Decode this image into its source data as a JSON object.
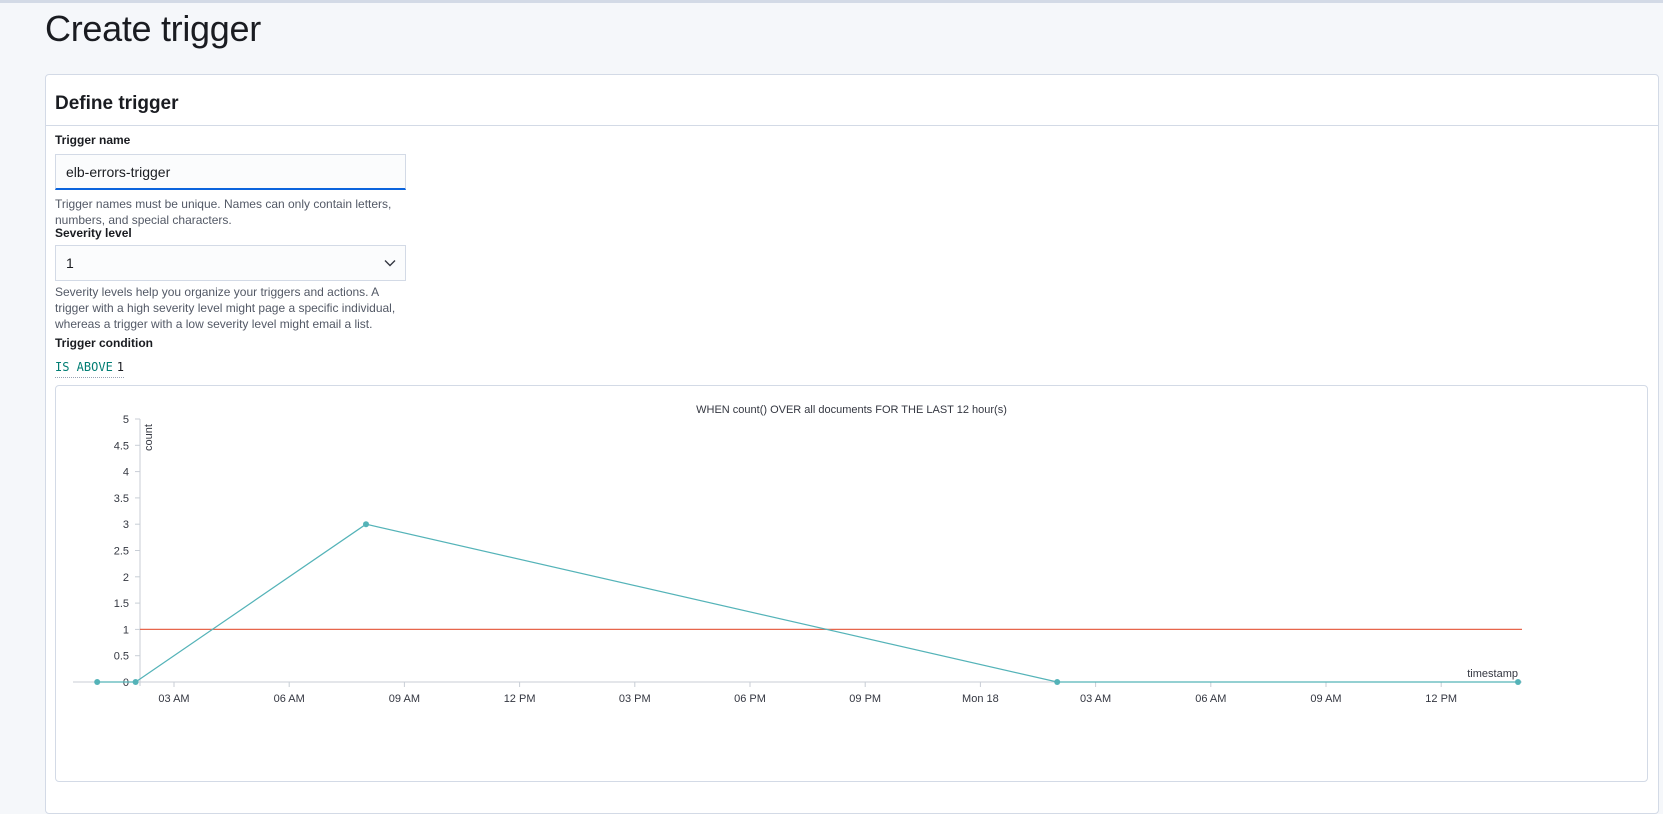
{
  "page": {
    "title": "Create trigger"
  },
  "panel": {
    "title": "Define trigger",
    "trigger_name": {
      "label": "Trigger name",
      "value": "elb-errors-trigger",
      "help": "Trigger names must be unique. Names can only contain letters, numbers, and special characters."
    },
    "severity": {
      "label": "Severity level",
      "selected": "1",
      "help": "Severity levels help you organize your triggers and actions. A trigger with a high severity level might page a specific individual, whereas a trigger with a low severity level might email a list."
    },
    "condition": {
      "label": "Trigger condition",
      "operator": "IS ABOVE",
      "value": "1"
    }
  },
  "chart_data": {
    "type": "line",
    "title": "WHEN count() OVER all documents FOR THE LAST 12 hour(s)",
    "ylabel": "count",
    "xlabel": "timestamp",
    "ylim": [
      0,
      5
    ],
    "yticks": [
      "0",
      "0.5",
      "1",
      "1.5",
      "2",
      "2.5",
      "3",
      "3.5",
      "4",
      "4.5",
      "5"
    ],
    "xticks": [
      "03 AM",
      "06 AM",
      "09 AM",
      "12 PM",
      "03 PM",
      "06 PM",
      "09 PM",
      "Mon 18",
      "03 AM",
      "06 AM",
      "09 AM",
      "12 PM"
    ],
    "threshold": 1,
    "colors": {
      "series": "#54b3b8",
      "threshold": "#e7664c",
      "axis": "#c8ced6"
    },
    "series": [
      {
        "points": [
          {
            "x": "17 01:00",
            "y": 0
          },
          {
            "x": "17 02:00",
            "y": 0
          },
          {
            "x": "17 08:00",
            "y": 3
          },
          {
            "x": "18 02:00",
            "y": 0
          },
          {
            "x": "18 14:00",
            "y": 0
          }
        ]
      }
    ]
  }
}
